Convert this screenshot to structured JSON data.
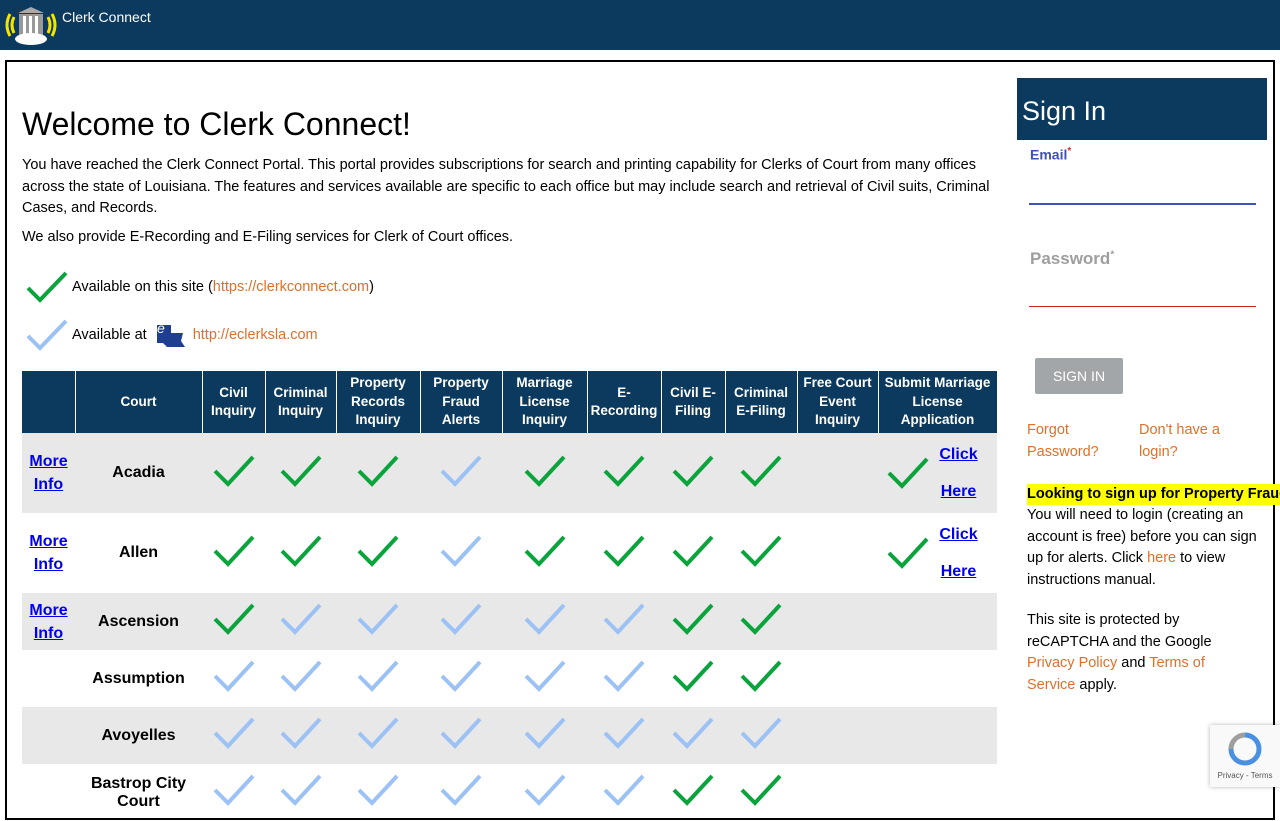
{
  "app": {
    "title": "Clerk Connect"
  },
  "colors": {
    "brand": "#0b3a5e",
    "green_check": "#0aa33c",
    "blue_check": "#9cc2f5",
    "link": "#e07028"
  },
  "main": {
    "title": "Welcome to Clerk Connect!",
    "intro": "You have reached the Clerk Connect Portal. This portal provides subscriptions for search and printing capability for Clerks of Court from many offices across the state of Louisiana. The features and services available are specific to each office but may include search and retrieval of Civil suits, Criminal Cases, and Records.",
    "intro2": "We also provide E-Recording and E-Filing services for Clerk of Court offices.",
    "legend": {
      "site_prefix": "Available on this site (",
      "site_url": "https://clerkconnect.com",
      "site_suffix": ")",
      "eclerks_prefix": "Available at",
      "eclerks_url": "http://eclerksla.com",
      "eclerks_logo_text": "eClerks LA"
    }
  },
  "table": {
    "headers": [
      "",
      "Court",
      "Civil Inquiry",
      "Criminal Inquiry",
      "Property Records Inquiry",
      "Property Fraud Alerts",
      "Marriage License Inquiry",
      "E-Recording",
      "Civil E-Filing",
      "Criminal E-Filing",
      "Free Court Event Inquiry",
      "Submit Marriage License Application"
    ],
    "more_info_label": "More Info",
    "click_here_label": "Click Here",
    "rows": [
      {
        "court": "Acadia",
        "more_info": true,
        "status": [
          "g",
          "g",
          "g",
          "b",
          "g",
          "g",
          "g",
          "g",
          ""
        ],
        "submit": true
      },
      {
        "court": "Allen",
        "more_info": true,
        "status": [
          "g",
          "g",
          "g",
          "b",
          "g",
          "g",
          "g",
          "g",
          ""
        ],
        "submit": true
      },
      {
        "court": "Ascension",
        "more_info": true,
        "status": [
          "g",
          "b",
          "b",
          "b",
          "b",
          "b",
          "g",
          "g",
          ""
        ],
        "submit": false
      },
      {
        "court": "Assumption",
        "more_info": false,
        "status": [
          "b",
          "b",
          "b",
          "b",
          "b",
          "b",
          "g",
          "g",
          ""
        ],
        "submit": false
      },
      {
        "court": "Avoyelles",
        "more_info": false,
        "status": [
          "b",
          "b",
          "b",
          "b",
          "b",
          "b",
          "b",
          "b",
          ""
        ],
        "submit": false
      },
      {
        "court": "Bastrop City Court",
        "more_info": false,
        "status": [
          "b",
          "b",
          "b",
          "b",
          "b",
          "b",
          "g",
          "g",
          ""
        ],
        "submit": false
      }
    ]
  },
  "signin": {
    "title": "Sign In",
    "email_label": "Email",
    "password_label": "Password",
    "required": "*",
    "button": "SIGN IN",
    "forgot": "Forgot Password?",
    "no_login": "Don't have a login?",
    "highlight": "Looking to sign up for Property Fraud Alerts?",
    "alerts_text_1": "You will need to login (creating an account is free) before you can sign up for alerts. Click ",
    "here": "here",
    "alerts_text_2": " to view instructions manual.",
    "captcha_1": "This site is protected by reCAPTCHA and the Google ",
    "privacy": "Privacy Policy",
    "and": " and ",
    "terms": "Terms of Service",
    "apply": " apply."
  },
  "recaptcha": {
    "links": "Privacy - Terms"
  }
}
